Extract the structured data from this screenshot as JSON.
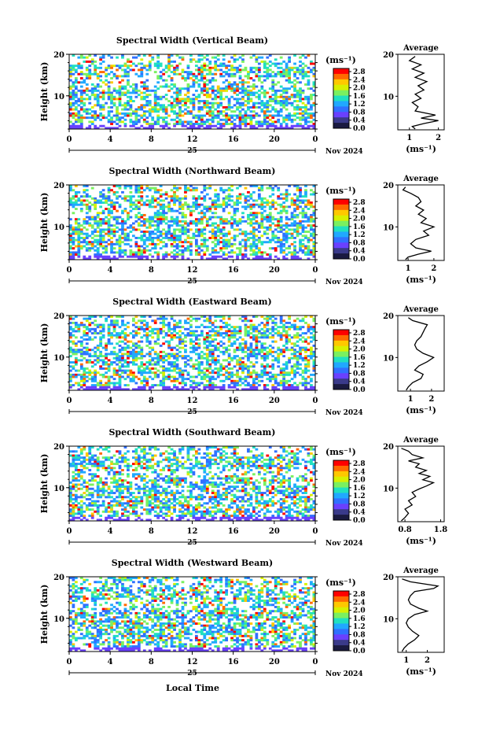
{
  "figure": {
    "xlabel_bottom": "Local Time"
  },
  "colorbar": {
    "unit": "(ms⁻¹)",
    "ticks": [
      "2.8",
      "2.4",
      "2.0",
      "1.6",
      "1.2",
      "0.8",
      "0.4",
      "0.0"
    ],
    "colors": [
      "#ff0000",
      "#ff6a00",
      "#ffc800",
      "#d8f000",
      "#7af060",
      "#20e0c0",
      "#20a8ff",
      "#3070ff",
      "#6a40ff",
      "#3a3a8a",
      "#1a1a40"
    ]
  },
  "chart_data": [
    {
      "type": "heatmap",
      "title": "Spectral Width (Vertical Beam)",
      "ylabel": "Height (km)",
      "xticks": [
        "0",
        "4",
        "8",
        "12",
        "16",
        "20",
        "0"
      ],
      "xlim": [
        0,
        24
      ],
      "ylim": [
        2,
        20
      ],
      "yticks": [
        "20",
        "10"
      ],
      "date_label": "25",
      "month_label": "Nov 2024",
      "profile": {
        "title": "Average",
        "xlabel": "(ms⁻¹)",
        "xticks": [
          "1",
          "2"
        ],
        "xlim": [
          0.6,
          2.2
        ],
        "points": [
          [
            1.2,
            19.5
          ],
          [
            1.0,
            18.5
          ],
          [
            1.4,
            17.5
          ],
          [
            1.1,
            16.5
          ],
          [
            1.5,
            15.5
          ],
          [
            1.2,
            14.5
          ],
          [
            1.6,
            13.5
          ],
          [
            1.3,
            12.5
          ],
          [
            1.5,
            11.5
          ],
          [
            1.2,
            10.5
          ],
          [
            1.4,
            9.5
          ],
          [
            1.1,
            8.5
          ],
          [
            1.3,
            7.5
          ],
          [
            1.2,
            6.5
          ],
          [
            1.9,
            5.5
          ],
          [
            1.4,
            4.8
          ],
          [
            2.0,
            4.2
          ],
          [
            1.5,
            3.5
          ],
          [
            1.1,
            2.8
          ],
          [
            1.2,
            2.2
          ]
        ]
      }
    },
    {
      "type": "heatmap",
      "title": "Spectral Width (Northward Beam)",
      "ylabel": "Height (km)",
      "xticks": [
        "0",
        "4",
        "8",
        "12",
        "16",
        "20",
        "0"
      ],
      "xlim": [
        0,
        24
      ],
      "ylim": [
        2,
        20
      ],
      "yticks": [
        "20",
        "10"
      ],
      "date_label": "25",
      "month_label": "Nov 2024",
      "profile": {
        "title": "Average",
        "xlabel": "(ms⁻¹)",
        "xticks": [
          "1",
          "2"
        ],
        "xlim": [
          0.6,
          2.4
        ],
        "points": [
          [
            0.9,
            19.5
          ],
          [
            0.8,
            18.8
          ],
          [
            1.1,
            18.0
          ],
          [
            1.4,
            17.0
          ],
          [
            1.5,
            16.0
          ],
          [
            1.3,
            15.0
          ],
          [
            1.6,
            14.0
          ],
          [
            1.4,
            13.0
          ],
          [
            1.7,
            12.0
          ],
          [
            1.5,
            11.0
          ],
          [
            2.0,
            10.0
          ],
          [
            1.6,
            9.0
          ],
          [
            1.8,
            8.0
          ],
          [
            1.3,
            7.0
          ],
          [
            1.1,
            6.0
          ],
          [
            1.3,
            5.0
          ],
          [
            1.9,
            4.2
          ],
          [
            1.4,
            3.5
          ],
          [
            1.0,
            2.8
          ],
          [
            0.9,
            2.2
          ]
        ]
      }
    },
    {
      "type": "heatmap",
      "title": "Spectral Width (Eastward Beam)",
      "ylabel": "Height (km)",
      "xticks": [
        "0",
        "4",
        "8",
        "12",
        "16",
        "20",
        "0"
      ],
      "xlim": [
        0,
        24
      ],
      "ylim": [
        2,
        20
      ],
      "yticks": [
        "20",
        "10"
      ],
      "date_label": "25",
      "month_label": "Nov 2024",
      "profile": {
        "title": "Average",
        "xlabel": "(ms⁻¹)",
        "xticks": [
          "1",
          "2"
        ],
        "xlim": [
          0.4,
          2.6
        ],
        "points": [
          [
            0.9,
            19.5
          ],
          [
            1.1,
            18.8
          ],
          [
            1.8,
            17.8
          ],
          [
            1.7,
            17.0
          ],
          [
            1.6,
            16.0
          ],
          [
            1.5,
            15.0
          ],
          [
            1.3,
            14.0
          ],
          [
            1.2,
            13.0
          ],
          [
            1.3,
            12.0
          ],
          [
            1.6,
            11.0
          ],
          [
            2.1,
            10.0
          ],
          [
            1.8,
            9.0
          ],
          [
            1.4,
            8.0
          ],
          [
            1.2,
            7.0
          ],
          [
            1.6,
            6.0
          ],
          [
            1.5,
            5.0
          ],
          [
            1.1,
            4.0
          ],
          [
            0.9,
            3.0
          ],
          [
            0.8,
            2.2
          ]
        ]
      }
    },
    {
      "type": "heatmap",
      "title": "Spectral Width (Southward Beam)",
      "ylabel": "Height (km)",
      "xticks": [
        "0",
        "4",
        "8",
        "12",
        "16",
        "20",
        "0"
      ],
      "xlim": [
        0,
        24
      ],
      "ylim": [
        2,
        20
      ],
      "yticks": [
        "20",
        "10"
      ],
      "date_label": "25",
      "month_label": "Nov 2024",
      "profile": {
        "title": "Average",
        "xlabel": "(ms⁻¹)",
        "xticks": [
          "0.8",
          "1.8"
        ],
        "xlim": [
          0.6,
          1.9
        ],
        "points": [
          [
            0.7,
            19.5
          ],
          [
            0.9,
            18.8
          ],
          [
            1.0,
            18.0
          ],
          [
            1.3,
            17.2
          ],
          [
            0.9,
            16.5
          ],
          [
            1.2,
            15.8
          ],
          [
            1.1,
            15.0
          ],
          [
            1.4,
            14.2
          ],
          [
            1.2,
            13.5
          ],
          [
            1.5,
            12.8
          ],
          [
            1.3,
            12.0
          ],
          [
            1.6,
            11.3
          ],
          [
            1.4,
            10.5
          ],
          [
            1.2,
            9.8
          ],
          [
            1.0,
            9.0
          ],
          [
            1.1,
            8.0
          ],
          [
            0.9,
            7.0
          ],
          [
            1.0,
            6.0
          ],
          [
            0.8,
            5.0
          ],
          [
            0.9,
            4.0
          ],
          [
            0.8,
            3.0
          ],
          [
            0.7,
            2.2
          ]
        ]
      }
    },
    {
      "type": "heatmap",
      "title": "Spectral Width (Westward Beam)",
      "ylabel": "Height (km)",
      "xticks": [
        "0",
        "4",
        "8",
        "12",
        "16",
        "20",
        "0"
      ],
      "xlim": [
        0,
        24
      ],
      "ylim": [
        2,
        20
      ],
      "yticks": [
        "20",
        "10"
      ],
      "date_label": "25",
      "month_label": "Nov 2024",
      "profile": {
        "title": "Average",
        "xlabel": "(ms⁻¹)",
        "xticks": [
          "1",
          "2"
        ],
        "xlim": [
          0.6,
          2.8
        ],
        "points": [
          [
            0.8,
            19.5
          ],
          [
            1.2,
            18.8
          ],
          [
            2.5,
            17.8
          ],
          [
            2.3,
            17.2
          ],
          [
            1.4,
            16.5
          ],
          [
            1.2,
            15.5
          ],
          [
            1.1,
            14.5
          ],
          [
            1.2,
            13.5
          ],
          [
            1.6,
            12.5
          ],
          [
            2.0,
            11.8
          ],
          [
            1.4,
            11.0
          ],
          [
            1.1,
            10.0
          ],
          [
            1.0,
            9.0
          ],
          [
            1.1,
            8.0
          ],
          [
            1.3,
            7.0
          ],
          [
            1.6,
            6.0
          ],
          [
            1.4,
            5.0
          ],
          [
            1.1,
            4.0
          ],
          [
            0.9,
            3.0
          ],
          [
            0.8,
            2.2
          ]
        ]
      }
    }
  ]
}
